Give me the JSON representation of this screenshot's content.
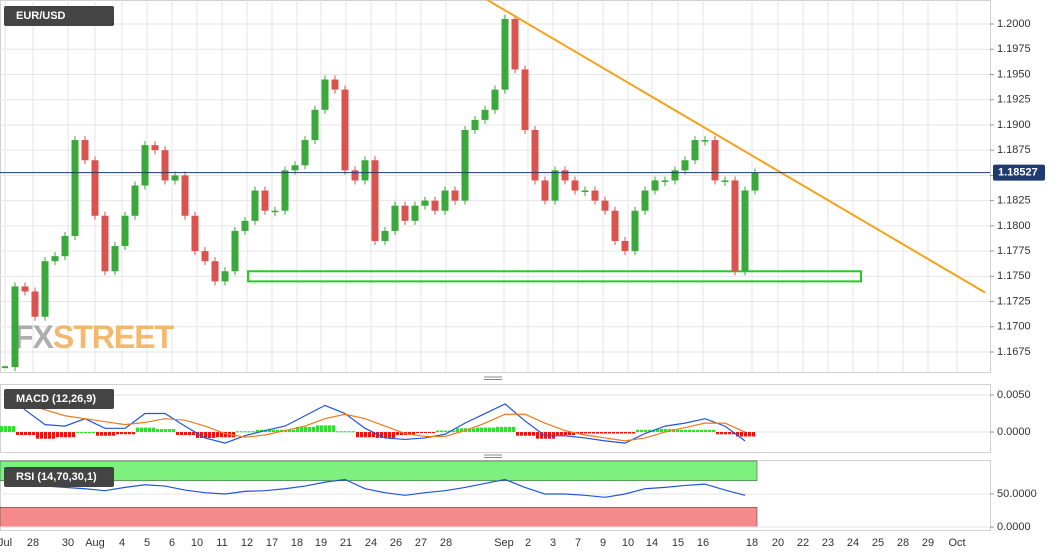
{
  "chart_data": [
    {
      "type": "candlestick",
      "title": "EUR/USD",
      "values": [
        1.166,
        1.174,
        1.1735,
        1.171,
        1.1765,
        1.177,
        1.179,
        1.1885,
        1.1865,
        1.181,
        1.1755,
        1.178,
        1.181,
        1.184,
        1.188,
        1.1875,
        1.1845,
        1.185,
        1.181,
        1.1775,
        1.1765,
        1.1745,
        1.1755,
        1.1795,
        1.1805,
        1.1835,
        1.1815,
        1.1815,
        1.1855,
        1.186,
        1.1885,
        1.1915,
        1.1945,
        1.1935,
        1.1855,
        1.1845,
        1.1865,
        1.1785,
        1.1795,
        1.182,
        1.1805,
        1.182,
        1.1825,
        1.1815,
        1.1835,
        1.1825,
        1.1895,
        1.1905,
        1.1915,
        1.1935,
        1.2005,
        1.1955,
        1.1895,
        1.1845,
        1.1825,
        1.1855,
        1.1845,
        1.1835,
        1.1835,
        1.1825,
        1.1815,
        1.1785,
        1.1775,
        1.1815,
        1.1835,
        1.1845,
        1.1845,
        1.1855,
        1.1865,
        1.1885,
        1.1885,
        1.1845,
        1.1845,
        1.1755,
        1.1835,
        1.18527
      ],
      "up_color": "#3aa83a",
      "down_color": "#d9534f",
      "last_price": 1.18527,
      "ylim": [
        1.16552,
        1.20238
      ],
      "yticks": [
        {
          "value": 1.2,
          "label": "1.2000"
        },
        {
          "value": 1.1975,
          "label": "1.1975"
        },
        {
          "value": 1.195,
          "label": "1.1950"
        },
        {
          "value": 1.1925,
          "label": "1.1925"
        },
        {
          "value": 1.19,
          "label": "1.1900"
        },
        {
          "value": 1.1875,
          "label": "1.1875"
        },
        {
          "value": 1.185,
          "label": "1.1850"
        },
        {
          "value": 1.1825,
          "label": "1.1825"
        },
        {
          "value": 1.18,
          "label": "1.1800"
        },
        {
          "value": 1.1775,
          "label": "1.1775"
        },
        {
          "value": 1.175,
          "label": "1.1750"
        },
        {
          "value": 1.1725,
          "label": "1.1725"
        },
        {
          "value": 1.17,
          "label": "1.1700"
        },
        {
          "value": 1.1675,
          "label": "1.1675"
        }
      ],
      "trendline": {
        "x": [
          48.2,
          98
        ],
        "values": [
          1.2024,
          1.1734
        ],
        "color": "#f5a21b"
      },
      "support_zone": {
        "x": [
          24.3,
          85.6
        ],
        "values": [
          1.1745,
          1.1755
        ],
        "color": "#22cc22"
      },
      "watermark": [
        "FX",
        "STREET"
      ],
      "x_labels": [
        "Jul",
        "28",
        "30",
        "Aug",
        "4",
        "5",
        "6",
        "10",
        "11",
        "12",
        "17",
        "18",
        "19",
        "21",
        "24",
        "26",
        "27",
        "28",
        "Sep",
        "2",
        "3",
        "7",
        "9",
        "10",
        "14",
        "15",
        "16",
        "18",
        "20",
        "22",
        "23",
        "24",
        "25",
        "28",
        "29",
        "Oct"
      ]
    },
    {
      "type": "macd",
      "title": "MACD (12,26,9)",
      "series": [
        {
          "name": "MACD",
          "color": "#2255dd",
          "values": [
            0.0055,
            0.003,
            0.001,
            0.0008,
            0.0018,
            0.0005,
            0.0005,
            0.0025,
            0.0025,
            0.0008,
            -0.0008,
            -0.0015,
            -0.0005,
            0.0002,
            0.0008,
            0.0022,
            0.0036,
            0.0025,
            0.0005,
            -0.0008,
            -0.001,
            -0.0008,
            -0.0003,
            0.0012,
            0.0025,
            0.0038,
            0.0015,
            -0.0005,
            -0.0005,
            -0.0008,
            -0.0012,
            -0.0015,
            -0.0002,
            0.0008,
            0.0012,
            0.0018,
            0.0008,
            -0.0012
          ]
        },
        {
          "name": "Signal",
          "color": "#f07820",
          "values": [
            0.004,
            0.0038,
            0.003,
            0.0022,
            0.0018,
            0.0014,
            0.001,
            0.0013,
            0.0018,
            0.0016,
            0.0008,
            -0.0002,
            -0.0007,
            -0.0004,
            0.0002,
            0.0008,
            0.0018,
            0.0024,
            0.0018,
            0.0008,
            -0.0002,
            -0.0006,
            -0.0006,
            0.0002,
            0.0012,
            0.0024,
            0.0024,
            0.0012,
            0.0002,
            -0.0004,
            -0.0008,
            -0.0012,
            -0.0008,
            0,
            0.0006,
            0.0012,
            0.0012,
            0
          ]
        }
      ],
      "histogram": [
        0.0008,
        -0.0004,
        -0.0009,
        -0.0007,
        0,
        -0.0005,
        -0.0003,
        0.0006,
        0.0004,
        -0.0004,
        -0.0008,
        -0.0007,
        0.0001,
        0.0003,
        0.0003,
        0.0007,
        0.0009,
        0.0001,
        -0.0007,
        -0.0008,
        -0.0004,
        -0.0001,
        0.0002,
        0.0005,
        0.0006,
        0.0007,
        -0.0005,
        -0.0009,
        -0.0004,
        -0.0002,
        -0.0002,
        -0.0002,
        0.0003,
        0.0004,
        0.0003,
        0.0003,
        -0.0003,
        -0.0006
      ],
      "hist_up_color": "#33dd33",
      "hist_down_color": "#ee1111",
      "ylim": [
        -0.0027,
        0.00649
      ],
      "yticks": [
        {
          "value": 0.005,
          "label": "0.0050"
        },
        {
          "value": 0,
          "label": "0.0000"
        }
      ]
    },
    {
      "type": "rsi",
      "title": "RSI (14,70,30,1)",
      "values": [
        70,
        66,
        62,
        60,
        58,
        55,
        60,
        64,
        62,
        56,
        52,
        50,
        54,
        55,
        58,
        62,
        68,
        72,
        58,
        52,
        48,
        52,
        55,
        60,
        66,
        72,
        60,
        50,
        50,
        48,
        45,
        50,
        58,
        60,
        63,
        65,
        56,
        48
      ],
      "color": "#2255dd",
      "upper_band": [
        70,
        100
      ],
      "lower_band": [
        0,
        30
      ],
      "upper_color": "#7ef07e",
      "lower_color": "#f58a8a",
      "ylim": [
        -4.5,
        101.5
      ],
      "yticks": [
        {
          "value": 50,
          "label": "50.0000"
        },
        {
          "value": 0,
          "label": "0.0000"
        }
      ]
    }
  ]
}
